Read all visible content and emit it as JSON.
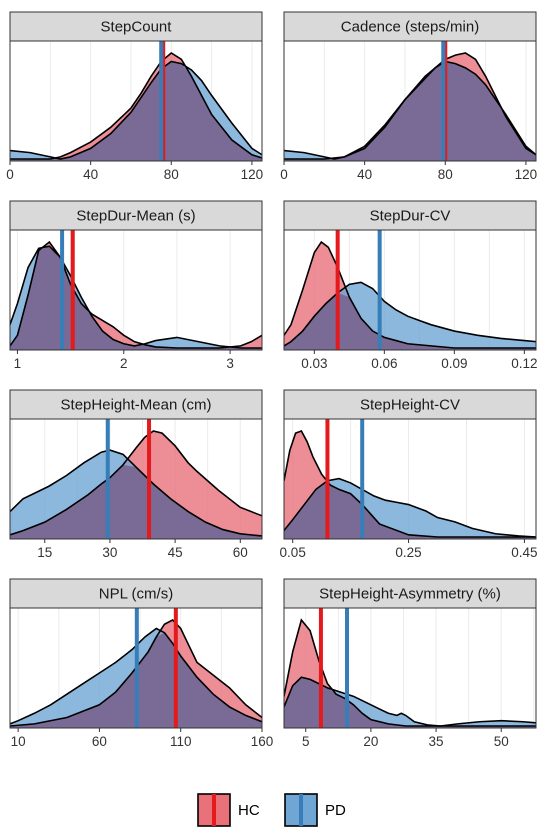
{
  "colors": {
    "hc_fill": "#e8717a",
    "pd_fill": "#6fa6d4",
    "overlap_fill": "#7a6a96",
    "hc_line": "#e41a1c",
    "pd_line": "#377eb8",
    "strip_bg": "#d9d9d9",
    "grid": "#ebebeb"
  },
  "legend": {
    "entries": [
      {
        "key": "hc",
        "label": "HC"
      },
      {
        "key": "pd",
        "label": "PD"
      }
    ]
  },
  "chart_data": {
    "type": "area",
    "subtype": "faceted density plot with group means",
    "groups": [
      "HC",
      "PD"
    ],
    "panels": [
      {
        "title": "StepCount",
        "xlim": [
          0,
          125
        ],
        "xticks": [
          0,
          40,
          80,
          120
        ],
        "tick_labels": [
          "0",
          "40",
          "80",
          "120"
        ],
        "hc_mean": 76,
        "pd_mean": 75,
        "series": [
          {
            "name": "HC",
            "x": [
              0,
              10,
              20,
              25,
              30,
              40,
              50,
              60,
              65,
              70,
              75,
              80,
              85,
              90,
              95,
              100,
              110,
              120,
              125
            ],
            "y": [
              0.0,
              0.0,
              0.0,
              0.02,
              0.06,
              0.16,
              0.3,
              0.48,
              0.62,
              0.78,
              0.92,
              1.0,
              0.94,
              0.78,
              0.6,
              0.42,
              0.18,
              0.04,
              0.01
            ]
          },
          {
            "name": "PD",
            "x": [
              0,
              10,
              20,
              25,
              30,
              40,
              50,
              60,
              65,
              70,
              75,
              80,
              85,
              90,
              95,
              100,
              110,
              120,
              125
            ],
            "y": [
              0.08,
              0.06,
              0.02,
              0.0,
              0.02,
              0.1,
              0.24,
              0.44,
              0.58,
              0.72,
              0.85,
              0.92,
              0.9,
              0.84,
              0.74,
              0.6,
              0.34,
              0.1,
              0.04
            ]
          }
        ]
      },
      {
        "title": "Cadence (steps/min)",
        "xlim": [
          0,
          125
        ],
        "xticks": [
          0,
          40,
          80,
          120
        ],
        "tick_labels": [
          "0",
          "40",
          "80",
          "120"
        ],
        "hc_mean": 80,
        "pd_mean": 79,
        "series": [
          {
            "name": "HC",
            "x": [
              0,
              10,
              20,
              30,
              40,
              50,
              60,
              70,
              75,
              80,
              85,
              90,
              95,
              100,
              110,
              120,
              125
            ],
            "y": [
              0.0,
              0.0,
              0.0,
              0.02,
              0.12,
              0.32,
              0.56,
              0.76,
              0.86,
              0.94,
              0.98,
              1.0,
              0.94,
              0.78,
              0.4,
              0.1,
              0.04
            ]
          },
          {
            "name": "PD",
            "x": [
              0,
              10,
              20,
              25,
              30,
              40,
              50,
              60,
              70,
              75,
              80,
              85,
              90,
              95,
              100,
              110,
              120,
              125
            ],
            "y": [
              0.08,
              0.06,
              0.02,
              0.0,
              0.02,
              0.1,
              0.3,
              0.56,
              0.78,
              0.86,
              0.92,
              0.9,
              0.86,
              0.8,
              0.7,
              0.42,
              0.12,
              0.04
            ]
          }
        ]
      },
      {
        "title": "StepDur-Mean (s)",
        "xlim": [
          0.93,
          3.3
        ],
        "xticks": [
          1,
          2,
          3
        ],
        "tick_labels": [
          "1",
          "2",
          "3"
        ],
        "hc_mean": 1.52,
        "pd_mean": 1.42,
        "series": [
          {
            "name": "HC",
            "x": [
              0.93,
              1.0,
              1.1,
              1.2,
              1.3,
              1.4,
              1.5,
              1.6,
              1.7,
              1.8,
              1.9,
              2.0,
              2.1,
              2.2,
              2.3,
              2.5,
              2.7,
              2.9,
              3.1,
              3.2,
              3.3
            ],
            "y": [
              0.02,
              0.12,
              0.5,
              0.92,
              1.0,
              0.86,
              0.6,
              0.42,
              0.32,
              0.26,
              0.2,
              0.12,
              0.06,
              0.03,
              0.01,
              0.0,
              0.0,
              0.0,
              0.02,
              0.06,
              0.12
            ]
          },
          {
            "name": "PD",
            "x": [
              0.93,
              1.0,
              1.1,
              1.2,
              1.3,
              1.4,
              1.5,
              1.6,
              1.7,
              1.8,
              1.9,
              2.0,
              2.1,
              2.2,
              2.3,
              2.5,
              2.7,
              2.9,
              3.1,
              3.2,
              3.3
            ],
            "y": [
              0.22,
              0.42,
              0.76,
              0.94,
              0.96,
              0.86,
              0.68,
              0.48,
              0.3,
              0.16,
              0.08,
              0.04,
              0.02,
              0.04,
              0.07,
              0.1,
              0.06,
              0.02,
              0.0,
              0.0,
              0.0
            ]
          }
        ]
      },
      {
        "title": "StepDur-CV",
        "xlim": [
          0.017,
          0.125
        ],
        "xticks": [
          0.03,
          0.06,
          0.09,
          0.12
        ],
        "tick_labels": [
          "0.03",
          "0.06",
          "0.09",
          "0.12"
        ],
        "hc_mean": 0.04,
        "pd_mean": 0.058,
        "series": [
          {
            "name": "HC",
            "x": [
              0.017,
              0.02,
              0.025,
              0.03,
              0.033,
              0.036,
              0.04,
              0.045,
              0.05,
              0.055,
              0.06,
              0.065,
              0.07,
              0.08,
              0.09,
              0.1,
              0.11,
              0.125
            ],
            "y": [
              0.12,
              0.22,
              0.55,
              0.9,
              1.0,
              0.95,
              0.76,
              0.48,
              0.28,
              0.16,
              0.1,
              0.07,
              0.04,
              0.02,
              0.0,
              0.0,
              0.0,
              0.0
            ]
          },
          {
            "name": "PD",
            "x": [
              0.017,
              0.02,
              0.025,
              0.03,
              0.035,
              0.04,
              0.045,
              0.05,
              0.055,
              0.06,
              0.065,
              0.07,
              0.075,
              0.08,
              0.09,
              0.1,
              0.11,
              0.12,
              0.125
            ],
            "y": [
              0.02,
              0.06,
              0.16,
              0.3,
              0.42,
              0.52,
              0.6,
              0.62,
              0.56,
              0.44,
              0.36,
              0.3,
              0.26,
              0.22,
              0.16,
              0.12,
              0.09,
              0.07,
              0.06
            ]
          }
        ]
      },
      {
        "title": "StepHeight-Mean (cm)",
        "xlim": [
          7,
          65
        ],
        "xticks": [
          15,
          30,
          45,
          60
        ],
        "tick_labels": [
          "15",
          "30",
          "45",
          "60"
        ],
        "hc_mean": 39,
        "pd_mean": 29.5,
        "series": [
          {
            "name": "HC",
            "x": [
              7,
              10,
              15,
              20,
              25,
              28,
              30,
              33,
              36,
              38,
              40,
              42,
              45,
              48,
              50,
              55,
              60,
              65
            ],
            "y": [
              0.02,
              0.06,
              0.14,
              0.26,
              0.4,
              0.5,
              0.56,
              0.68,
              0.84,
              0.94,
              1.0,
              0.98,
              0.86,
              0.7,
              0.62,
              0.44,
              0.28,
              0.2
            ]
          },
          {
            "name": "PD",
            "x": [
              7,
              10,
              13,
              16,
              20,
              24,
              28,
              30,
              33,
              36,
              40,
              44,
              48,
              52,
              56,
              60,
              65
            ],
            "y": [
              0.24,
              0.36,
              0.42,
              0.48,
              0.58,
              0.7,
              0.8,
              0.82,
              0.78,
              0.66,
              0.5,
              0.36,
              0.24,
              0.14,
              0.07,
              0.03,
              0.01
            ]
          }
        ]
      },
      {
        "title": "StepHeight-CV",
        "xlim": [
          0.035,
          0.47
        ],
        "xticks": [
          0.05,
          0.25,
          0.45
        ],
        "tick_labels": [
          "0.05",
          "0.25",
          "0.45"
        ],
        "hc_mean": 0.11,
        "pd_mean": 0.17,
        "series": [
          {
            "name": "HC",
            "x": [
              0.035,
              0.045,
              0.055,
              0.065,
              0.075,
              0.085,
              0.1,
              0.115,
              0.13,
              0.15,
              0.17,
              0.2,
              0.25,
              0.3,
              0.35,
              0.4,
              0.47
            ],
            "y": [
              0.52,
              0.8,
              0.96,
              0.98,
              0.88,
              0.74,
              0.58,
              0.48,
              0.44,
              0.4,
              0.3,
              0.12,
              0.02,
              0.0,
              0.0,
              0.0,
              0.0
            ]
          },
          {
            "name": "PD",
            "x": [
              0.035,
              0.05,
              0.07,
              0.09,
              0.11,
              0.13,
              0.15,
              0.17,
              0.19,
              0.21,
              0.23,
              0.25,
              0.28,
              0.3,
              0.33,
              0.36,
              0.4,
              0.44,
              0.47
            ],
            "y": [
              0.06,
              0.16,
              0.3,
              0.44,
              0.52,
              0.54,
              0.5,
              0.44,
              0.38,
              0.34,
              0.32,
              0.3,
              0.24,
              0.18,
              0.14,
              0.08,
              0.03,
              0.01,
              0.0
            ]
          }
        ]
      },
      {
        "title": "NPL (cm/s)",
        "xlim": [
          5,
          160
        ],
        "xticks": [
          10,
          60,
          110,
          160
        ],
        "tick_labels": [
          "10",
          "60",
          "110",
          "160"
        ],
        "hc_mean": 107,
        "pd_mean": 83,
        "series": [
          {
            "name": "HC",
            "x": [
              5,
              20,
              40,
              60,
              70,
              80,
              90,
              95,
              100,
              105,
              110,
              115,
              120,
              130,
              140,
              150,
              160
            ],
            "y": [
              0.0,
              0.02,
              0.08,
              0.2,
              0.32,
              0.5,
              0.7,
              0.84,
              0.96,
              1.0,
              0.92,
              0.76,
              0.6,
              0.48,
              0.36,
              0.2,
              0.08
            ]
          },
          {
            "name": "PD",
            "x": [
              5,
              10,
              20,
              30,
              40,
              50,
              60,
              70,
              80,
              88,
              95,
              100,
              105,
              110,
              120,
              130,
              140,
              150,
              160
            ],
            "y": [
              0.02,
              0.05,
              0.12,
              0.2,
              0.3,
              0.4,
              0.5,
              0.6,
              0.72,
              0.84,
              0.92,
              0.88,
              0.78,
              0.66,
              0.46,
              0.3,
              0.18,
              0.1,
              0.04
            ]
          }
        ]
      },
      {
        "title": "StepHeight-Asymmetry (%)",
        "xlim": [
          0,
          58
        ],
        "xticks": [
          5,
          20,
          35,
          50
        ],
        "tick_labels": [
          "5",
          "20",
          "35",
          "50"
        ],
        "hc_mean": 8.5,
        "pd_mean": 14.5,
        "series": [
          {
            "name": "HC",
            "x": [
              0,
              2,
              4,
              6,
              8,
              10,
              12,
              14,
              16,
              18,
              20,
              24,
              28,
              32,
              40,
              58
            ],
            "y": [
              0.28,
              0.7,
              1.0,
              0.9,
              0.62,
              0.4,
              0.3,
              0.26,
              0.2,
              0.12,
              0.06,
              0.02,
              0.0,
              0.0,
              0.0,
              0.0
            ]
          },
          {
            "name": "PD",
            "x": [
              0,
              2,
              4,
              6,
              8,
              10,
              13,
              16,
              19,
              22,
              24,
              26,
              27,
              28,
              30,
              33,
              36,
              40,
              45,
              50,
              55,
              58
            ],
            "y": [
              0.18,
              0.38,
              0.46,
              0.44,
              0.4,
              0.36,
              0.32,
              0.28,
              0.22,
              0.16,
              0.12,
              0.1,
              0.12,
              0.1,
              0.04,
              0.01,
              0.0,
              0.02,
              0.04,
              0.05,
              0.04,
              0.03
            ]
          }
        ]
      }
    ]
  }
}
